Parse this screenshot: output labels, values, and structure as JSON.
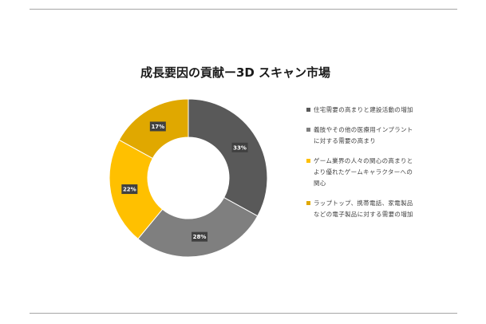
{
  "chart_data": {
    "type": "donut",
    "title": "成長要因の貢献ー3D スキャン市場",
    "series": [
      {
        "label": "住宅需要の高まりと建設活動の増加",
        "value": 33,
        "data_label": "33%",
        "color": "#595959"
      },
      {
        "label": "義肢やその他の医療用インプラントに対する需要の高まり",
        "value": 28,
        "data_label": "28%",
        "color": "#7f7f7f"
      },
      {
        "label": "ゲーム業界の人々の関心の高まりとより優れたゲームキャラクターへの関心",
        "value": 22,
        "data_label": "22%",
        "color": "#ffc000"
      },
      {
        "label": "ラップトップ、携帯電話、家電製品などの電子製品に対する需要の増加",
        "value": 17,
        "data_label": "17%",
        "color": "#e0a800"
      }
    ],
    "legend_position": "right"
  }
}
